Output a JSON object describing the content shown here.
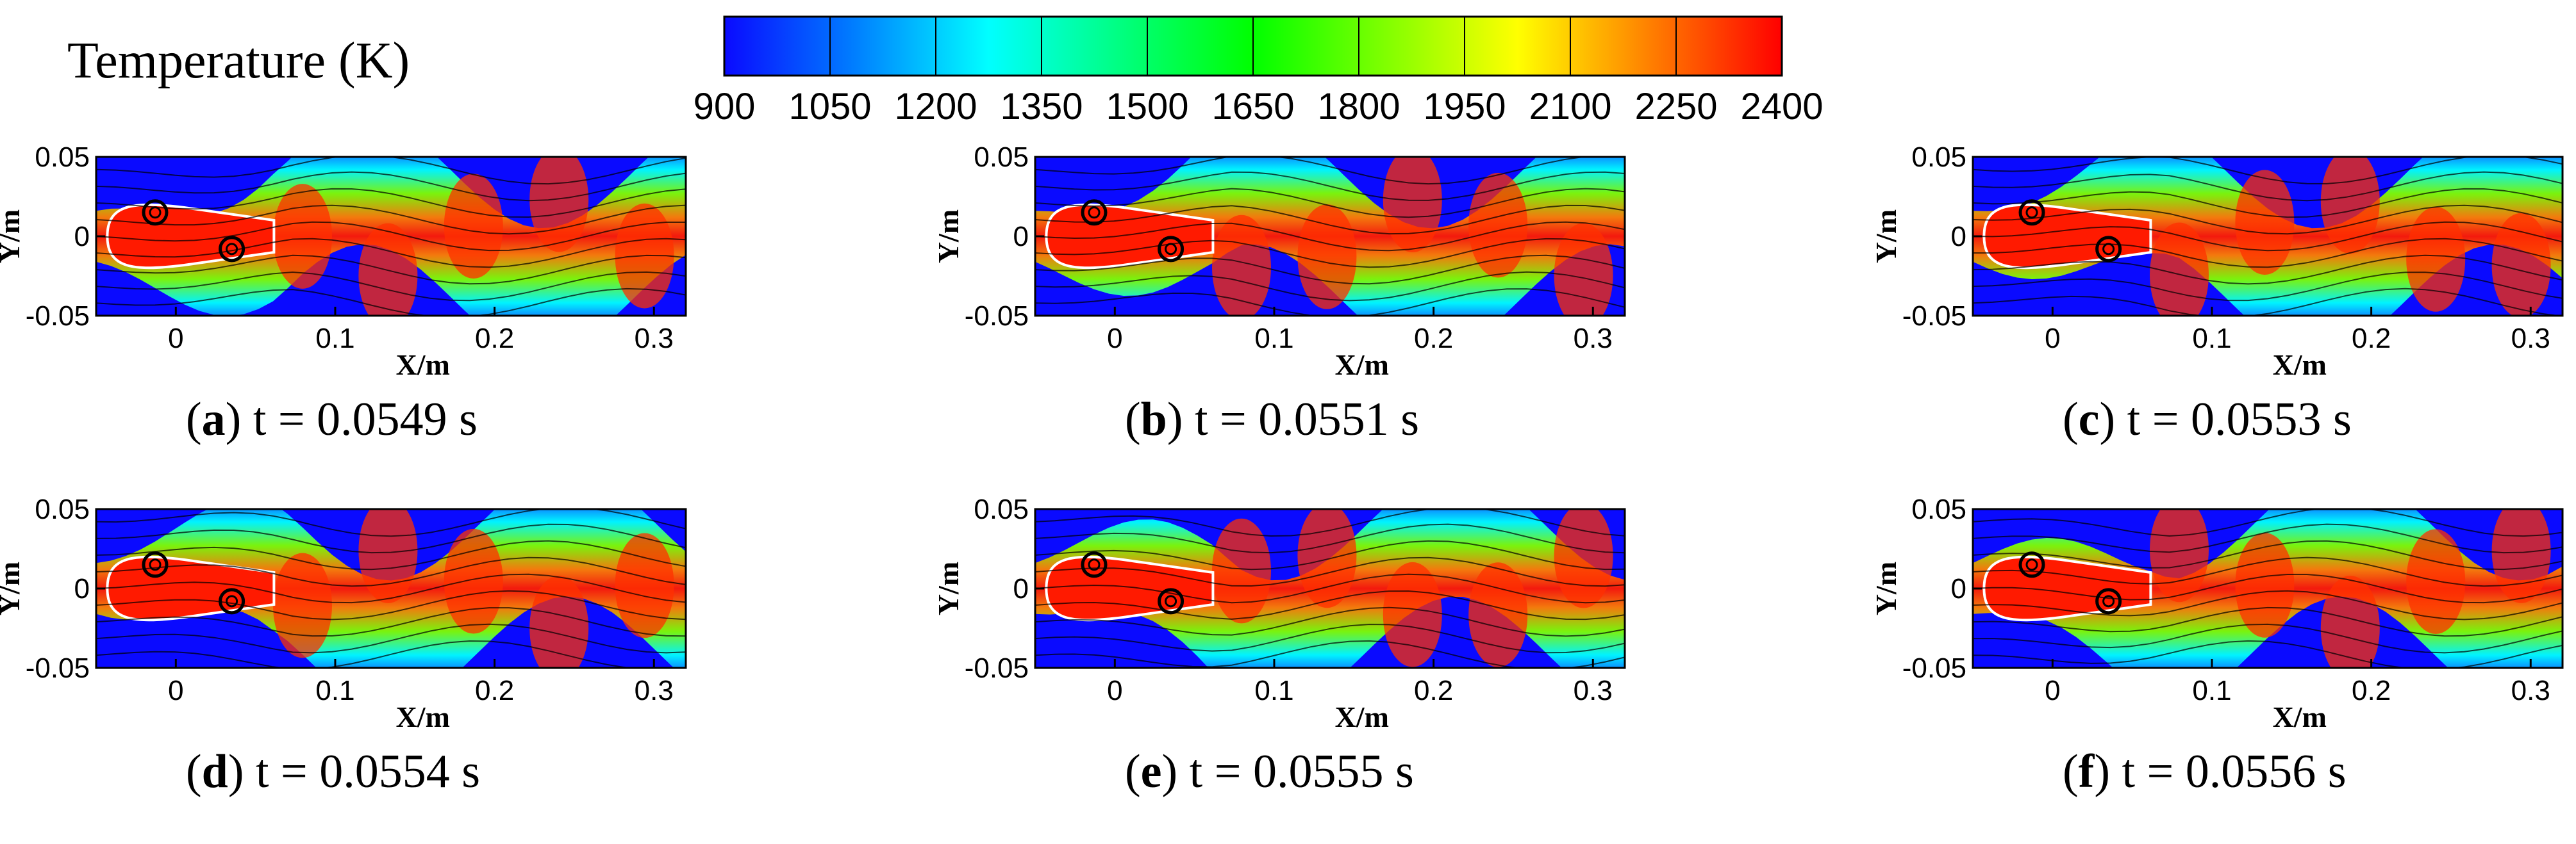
{
  "colorbar": {
    "title": "Temperature (K)",
    "ticks": [
      "900",
      "1050",
      "1200",
      "1350",
      "1500",
      "1650",
      "1800",
      "1950",
      "2100",
      "2250",
      "2400"
    ],
    "colors": [
      "#0a0aff",
      "#0080ff",
      "#00ffff",
      "#00ff80",
      "#00ff00",
      "#80ff00",
      "#ffff00",
      "#ff8000",
      "#ff0000"
    ]
  },
  "chart_data": [
    {
      "type": "heatmap",
      "field": "Temperature (K)",
      "xlabel": "X/m",
      "ylabel": "Y/m",
      "xticks": [
        "0",
        "0.1",
        "0.2",
        "0.3"
      ],
      "yticks": [
        "0.05",
        "0",
        "-0.05"
      ],
      "xlim": [
        -0.05,
        0.32
      ],
      "ylim": [
        -0.05,
        0.05
      ],
      "caption_letter": "a",
      "caption_text": " t = 0.0549 s"
    },
    {
      "type": "heatmap",
      "field": "Temperature (K)",
      "xlabel": "X/m",
      "ylabel": "Y/m",
      "xticks": [
        "0",
        "0.1",
        "0.2",
        "0.3"
      ],
      "yticks": [
        "0.05",
        "0",
        "-0.05"
      ],
      "xlim": [
        -0.05,
        0.32
      ],
      "ylim": [
        -0.05,
        0.05
      ],
      "caption_letter": "b",
      "caption_text": " t = 0.0551 s"
    },
    {
      "type": "heatmap",
      "field": "Temperature (K)",
      "xlabel": "X/m",
      "ylabel": "Y/m",
      "xticks": [
        "0",
        "0.1",
        "0.2",
        "0.3"
      ],
      "yticks": [
        "0.05",
        "0",
        "-0.05"
      ],
      "xlim": [
        -0.05,
        0.32
      ],
      "ylim": [
        -0.05,
        0.05
      ],
      "caption_letter": "c",
      "caption_text": " t = 0.0553 s"
    },
    {
      "type": "heatmap",
      "field": "Temperature (K)",
      "xlabel": "X/m",
      "ylabel": "Y/m",
      "xticks": [
        "0",
        "0.1",
        "0.2",
        "0.3"
      ],
      "yticks": [
        "0.05",
        "0",
        "-0.05"
      ],
      "xlim": [
        -0.05,
        0.32
      ],
      "ylim": [
        -0.05,
        0.05
      ],
      "caption_letter": "d",
      "caption_text": " t = 0.0554 s"
    },
    {
      "type": "heatmap",
      "field": "Temperature (K)",
      "xlabel": "X/m",
      "ylabel": "Y/m",
      "xticks": [
        "0",
        "0.1",
        "0.2",
        "0.3"
      ],
      "yticks": [
        "0.05",
        "0",
        "-0.05"
      ],
      "xlim": [
        -0.05,
        0.32
      ],
      "ylim": [
        -0.05,
        0.05
      ],
      "caption_letter": "e",
      "caption_text": " t = 0.0555 s"
    },
    {
      "type": "heatmap",
      "field": "Temperature (K)",
      "xlabel": "X/m",
      "ylabel": "Y/m",
      "xticks": [
        "0",
        "0.1",
        "0.2",
        "0.3"
      ],
      "yticks": [
        "0.05",
        "0",
        "-0.05"
      ],
      "xlim": [
        -0.05,
        0.32
      ],
      "ylim": [
        -0.05,
        0.05
      ],
      "caption_letter": "f",
      "caption_text": " t = 0.0556 s"
    }
  ]
}
